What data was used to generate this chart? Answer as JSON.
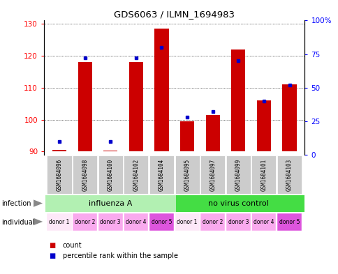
{
  "title": "GDS6063 / ILMN_1694983",
  "samples": [
    "GSM1684096",
    "GSM1684098",
    "GSM1684100",
    "GSM1684102",
    "GSM1684104",
    "GSM1684095",
    "GSM1684097",
    "GSM1684099",
    "GSM1684101",
    "GSM1684103"
  ],
  "counts": [
    90.5,
    118,
    90.3,
    118,
    128.5,
    99.5,
    101.5,
    122,
    106,
    111
  ],
  "percentile_ranks": [
    10,
    72,
    10,
    72,
    80,
    28,
    32,
    70,
    40,
    52
  ],
  "ylim_left": [
    89,
    131
  ],
  "ylim_right": [
    0,
    100
  ],
  "yticks_left": [
    90,
    100,
    110,
    120,
    130
  ],
  "yticks_right": [
    0,
    25,
    50,
    75,
    100
  ],
  "individuals": [
    "donor 1",
    "donor 2",
    "donor 3",
    "donor 4",
    "donor 5",
    "donor 1",
    "donor 2",
    "donor 3",
    "donor 4",
    "donor 5"
  ],
  "ind_colors": [
    "#fce4ec",
    "#f48fb1",
    "#f48fb1",
    "#f48fb1",
    "#e040fb",
    "#fce4ec",
    "#f48fb1",
    "#f48fb1",
    "#f48fb1",
    "#e040fb"
  ],
  "inf_color_light": "#b2f0b2",
  "inf_color_dark": "#44dd44",
  "bar_color": "#cc0000",
  "dot_color": "#0000cc",
  "bar_bottom": 90,
  "bar_width": 0.55,
  "sample_bg": "#cccccc"
}
